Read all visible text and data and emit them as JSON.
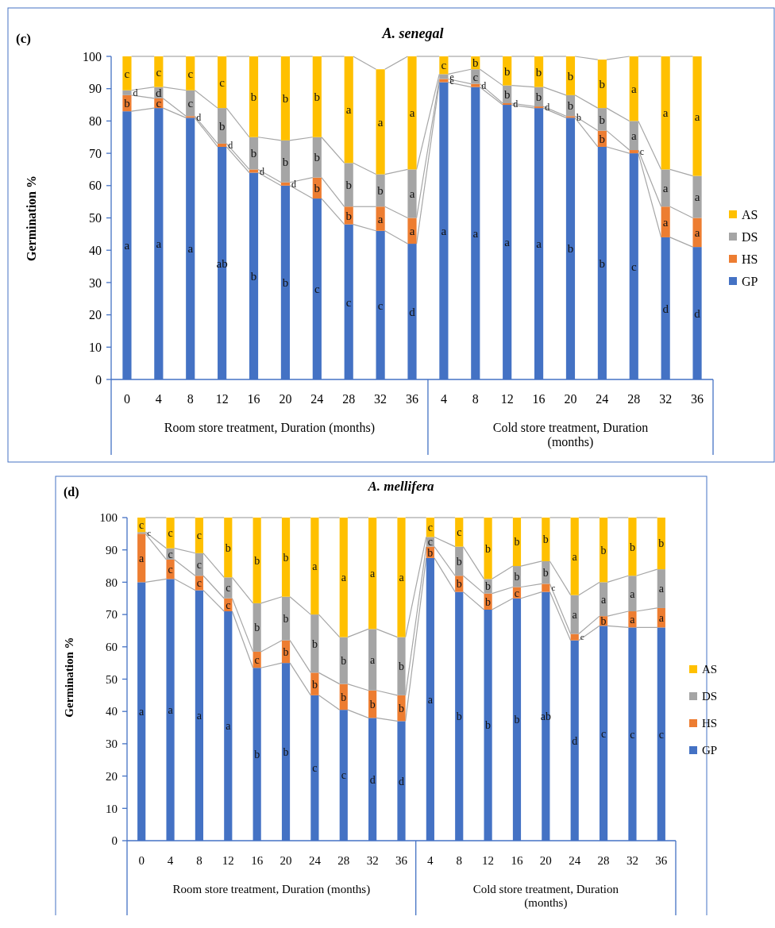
{
  "chart_data": [
    {
      "type": "bar",
      "title": "A. senegal",
      "ylabel": "Germination %",
      "stacked": true,
      "legend": "right",
      "categories": [
        "0",
        "4",
        "8",
        "12",
        "16",
        "20",
        "24",
        "28",
        "32",
        "36",
        "4",
        "8",
        "12",
        "16",
        "20",
        "24",
        "28",
        "32",
        "36"
      ],
      "ylim": [
        0,
        100
      ],
      "yticks": [
        0,
        10,
        20,
        30,
        40,
        50,
        60,
        70,
        80,
        90,
        100
      ],
      "annotations": [
        "(c)",
        "Room store treatment, Duration (months)",
        "Cold store treatment, Duration (months)"
      ],
      "series": [
        {
          "name": "GP",
          "color": "#4472c4",
          "values": [
            83,
            84,
            81,
            72,
            64,
            60,
            56,
            48,
            46,
            42,
            92,
            90.5,
            85,
            84,
            81,
            72,
            70,
            44,
            41
          ],
          "value_labels": [
            "a",
            "a",
            "a",
            "ab",
            "b",
            "b",
            "c",
            "c",
            "c",
            "d",
            "a",
            "a",
            "a",
            "a",
            "b",
            "b",
            "c",
            "d",
            "d"
          ]
        },
        {
          "name": "HS",
          "color": "#ed7d31",
          "values": [
            5,
            3,
            0.5,
            1,
            1,
            1,
            6.5,
            5.5,
            7.5,
            8,
            1,
            1,
            0.5,
            0.5,
            0.5,
            5,
            1,
            9.5,
            9
          ],
          "value_labels": [
            "b",
            "c",
            "d",
            "d",
            "d",
            "d",
            "b",
            "b",
            "a",
            "a",
            "e",
            "d",
            "d",
            "d",
            "b",
            "b",
            "c",
            "a",
            "a"
          ]
        },
        {
          "name": "DS",
          "color": "#a5a5a5",
          "values": [
            1.5,
            3.5,
            8,
            11,
            10,
            13,
            12.5,
            13.5,
            10,
            15,
            1.5,
            4.5,
            5.5,
            6,
            6.5,
            7,
            9,
            11.5,
            13
          ],
          "value_labels": [
            "d",
            "d",
            "c",
            "b",
            "b",
            "b",
            "b",
            "b",
            "b",
            "a",
            "e",
            "c",
            "b",
            "b",
            "b",
            "b",
            "a",
            "a",
            "a"
          ]
        },
        {
          "name": "AS",
          "color": "#ffc000",
          "values": [
            10.5,
            9.5,
            10.5,
            16,
            25,
            26,
            25,
            33,
            32.5,
            35,
            5.5,
            4,
            9,
            9.5,
            12,
            15,
            20,
            35,
            37
          ],
          "value_labels": [
            "c",
            "c",
            "c",
            "c",
            "b",
            "b",
            "b",
            "a",
            "a",
            "a",
            "c",
            "b",
            "b",
            "b",
            "b",
            "b",
            "a",
            "a",
            "a"
          ]
        }
      ]
    },
    {
      "type": "bar",
      "title": "A. mellifera",
      "ylabel": "Germination %",
      "stacked": true,
      "legend": "right",
      "categories": [
        "0",
        "4",
        "8",
        "12",
        "16",
        "20",
        "24",
        "28",
        "32",
        "36",
        "4",
        "8",
        "12",
        "16",
        "20",
        "24",
        "28",
        "32",
        "36"
      ],
      "ylim": [
        0,
        100
      ],
      "yticks": [
        0,
        10,
        20,
        30,
        40,
        50,
        60,
        70,
        80,
        90,
        100
      ],
      "annotations": [
        "(d)",
        "Room store treatment, Duration (months)",
        "Cold store treatment, Duration (months)"
      ],
      "series": [
        {
          "name": "GP",
          "color": "#4472c4",
          "values": [
            80,
            81,
            77.5,
            71,
            53.5,
            55,
            45,
            40.5,
            38,
            37,
            87.5,
            77,
            71.5,
            75,
            77,
            62,
            66.5,
            66,
            66
          ],
          "value_labels": [
            "a",
            "a",
            "a",
            "a",
            "b",
            "b",
            "c",
            "c",
            "d",
            "d",
            "a",
            "b",
            "b",
            "b",
            "ab",
            "d",
            "c",
            "c",
            "c"
          ]
        },
        {
          "name": "HS",
          "color": "#ed7d31",
          "values": [
            15,
            6,
            4.5,
            4,
            5,
            7,
            7,
            8,
            8.5,
            8,
            3.5,
            5,
            5,
            3.5,
            2.5,
            2,
            3,
            5,
            6
          ],
          "value_labels": [
            "a",
            "c",
            "c",
            "c",
            "c",
            "b",
            "b",
            "b",
            "b",
            "b",
            "b",
            "b",
            "b",
            "c",
            "c",
            "c",
            "b",
            "a",
            "a"
          ]
        },
        {
          "name": "DS",
          "color": "#a5a5a5",
          "values": [
            0.5,
            3.5,
            7,
            6.5,
            15,
            13.5,
            18,
            14.5,
            19,
            18,
            3,
            9,
            4.5,
            6.5,
            7,
            12,
            10.5,
            11,
            12
          ],
          "value_labels": [
            "c",
            "c",
            "c",
            "c",
            "b",
            "b",
            "b",
            "b",
            "a",
            "b",
            "c",
            "b",
            "b",
            "b",
            "b",
            "a",
            "a",
            "a",
            "a"
          ]
        },
        {
          "name": "AS",
          "color": "#ffc000",
          "values": [
            4.5,
            9.5,
            11,
            18.5,
            26.5,
            24.5,
            30,
            37,
            34.5,
            37,
            6,
            9,
            19,
            15,
            13.5,
            24,
            20,
            18,
            16
          ],
          "value_labels": [
            "c",
            "c",
            "c",
            "b",
            "b",
            "b",
            "a",
            "a",
            "a",
            "a",
            "c",
            "c",
            "b",
            "b",
            "b",
            "a",
            "b",
            "b",
            "b"
          ]
        }
      ]
    }
  ]
}
